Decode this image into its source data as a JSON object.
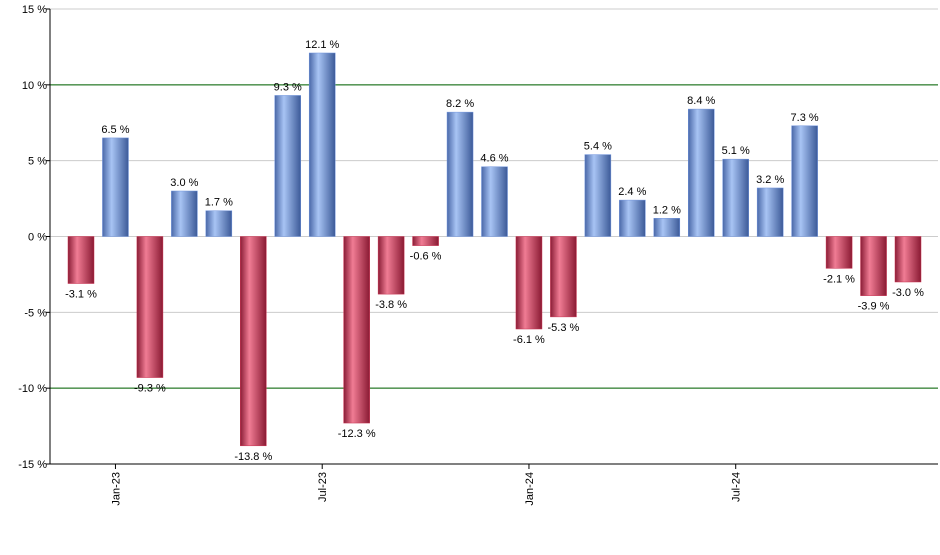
{
  "chart_data": {
    "type": "bar",
    "categories": [
      null,
      "Jan-23",
      null,
      null,
      null,
      null,
      null,
      "Jul-23",
      null,
      null,
      null,
      null,
      null,
      "Jan-24",
      null,
      null,
      null,
      null,
      null,
      "Jul-24",
      null,
      null,
      null,
      null,
      null
    ],
    "values": [
      -3.1,
      6.5,
      -9.3,
      3.0,
      1.7,
      -13.8,
      9.3,
      12.1,
      -12.3,
      -3.8,
      -0.6,
      8.2,
      4.6,
      -6.1,
      -5.3,
      5.4,
      2.4,
      1.2,
      8.4,
      5.1,
      3.2,
      7.3,
      -2.1,
      -3.9,
      -3.0
    ],
    "value_labels": [
      "-3.1 %",
      "6.5 %",
      "-9.3 %",
      "3.0 %",
      "1.7 %",
      "-13.8 %",
      "9.3 %",
      "12.1 %",
      "-12.3 %",
      "-3.8 %",
      "-0.6 %",
      "8.2 %",
      "4.6 %",
      "-6.1 %",
      "-5.3 %",
      "5.4 %",
      "2.4 %",
      "1.2 %",
      "8.4 %",
      "5.1 %",
      "3.2 %",
      "7.3 %",
      "-2.1 %",
      "-3.9 %",
      "-3.0 %"
    ],
    "positive_color": "#6f93dc",
    "negative_color": "#c9304f",
    "ylim": [
      -15,
      15
    ],
    "yticks": [
      {
        "value": -15,
        "label": "-15 %"
      },
      {
        "value": -10,
        "label": "-10 %"
      },
      {
        "value": -5,
        "label": "-5 %"
      },
      {
        "value": 0,
        "label": "0 %"
      },
      {
        "value": 5,
        "label": "5 %"
      },
      {
        "value": 10,
        "label": "10 %"
      },
      {
        "value": 15,
        "label": "15 %"
      }
    ],
    "grid": true,
    "grid_color": "#cccccc",
    "reference_lines": [
      -10,
      10
    ],
    "reference_line_color": "#006400"
  }
}
